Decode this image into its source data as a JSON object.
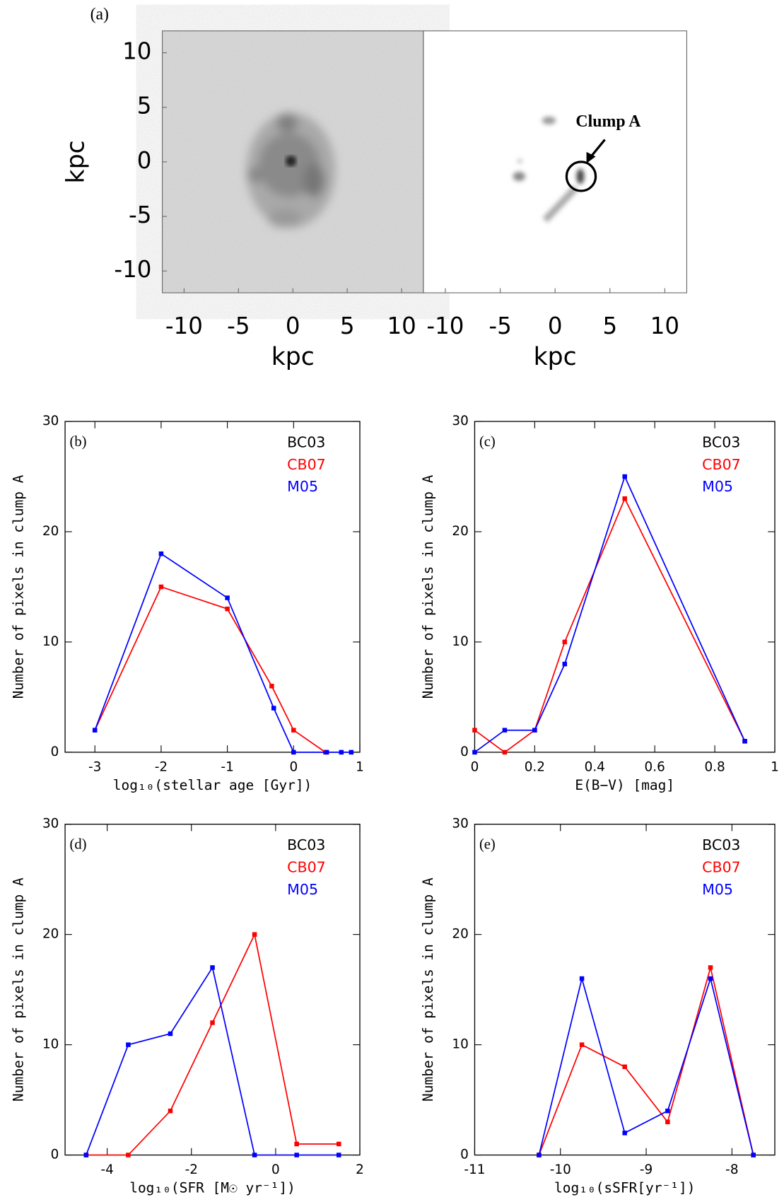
{
  "chart_data": [
    {
      "type": "image",
      "panel": "(a)",
      "xlabel": "kpc",
      "ylabel": "kpc",
      "xlim": [
        -12,
        12
      ],
      "ylim": [
        -12,
        12
      ],
      "xticks": [
        -10,
        -5,
        0,
        5,
        10
      ],
      "yticks": [
        -10,
        -5,
        0,
        5,
        10
      ]
    },
    {
      "type": "image",
      "xlabel": "kpc",
      "annotation": "Clump A",
      "xlim": [
        -12,
        12
      ],
      "ylim": [
        -12,
        12
      ],
      "xticks": [
        -10,
        -5,
        0,
        5,
        10
      ]
    },
    {
      "type": "line",
      "panel": "(b)",
      "xlabel": "log₁₀(stellar age [Gyr])",
      "ylabel": "Number of pixels in clump A",
      "xlim": [
        -3.45,
        1
      ],
      "ylim": [
        0,
        30
      ],
      "xticks": [
        -3,
        -2,
        -1,
        0,
        1
      ],
      "yticks": [
        0,
        10,
        20,
        30
      ],
      "series": [
        {
          "name": "BC03",
          "color": "#000000",
          "x": [],
          "values": []
        },
        {
          "name": "CB07",
          "color": "#ff0000",
          "x": [
            -3,
            -2,
            -1,
            -0.33,
            0,
            0.48
          ],
          "values": [
            2,
            15,
            13,
            6,
            2,
            0
          ]
        },
        {
          "name": "M05",
          "color": "#0000ff",
          "x": [
            -3,
            -2,
            -1,
            -0.3,
            0,
            0.5,
            0.72,
            0.87
          ],
          "values": [
            2,
            18,
            14,
            4,
            0,
            0,
            0,
            0
          ]
        }
      ]
    },
    {
      "type": "line",
      "panel": "(c)",
      "xlabel": "E(B−V) [mag]",
      "ylabel": "Number of pixels in clump A",
      "xlim": [
        0,
        1
      ],
      "ylim": [
        0,
        30
      ],
      "xticks": [
        0,
        0.2,
        0.4,
        0.6,
        0.8,
        1
      ],
      "yticks": [
        0,
        10,
        20,
        30
      ],
      "series": [
        {
          "name": "BC03",
          "color": "#000000",
          "x": [],
          "values": []
        },
        {
          "name": "CB07",
          "color": "#ff0000",
          "x": [
            0,
            0.1,
            0.2,
            0.3,
            0.5,
            0.9
          ],
          "values": [
            2,
            0,
            2,
            10,
            23,
            1
          ]
        },
        {
          "name": "M05",
          "color": "#0000ff",
          "x": [
            0,
            0.1,
            0.2,
            0.3,
            0.5,
            0.9
          ],
          "values": [
            0,
            2,
            2,
            8,
            25,
            1
          ]
        }
      ]
    },
    {
      "type": "line",
      "panel": "(d)",
      "xlabel": "log₁₀(SFR [M☉ yr⁻¹])",
      "ylabel": "Number of pixels in clump A",
      "xlim": [
        -5,
        2
      ],
      "ylim": [
        0,
        30
      ],
      "xticks": [
        -4,
        -2,
        0,
        2
      ],
      "yticks": [
        0,
        10,
        20,
        30
      ],
      "series": [
        {
          "name": "BC03",
          "color": "#000000",
          "x": [],
          "values": []
        },
        {
          "name": "CB07",
          "color": "#ff0000",
          "x": [
            -4.5,
            -3.5,
            -2.5,
            -1.5,
            -0.5,
            0.5,
            1.5
          ],
          "values": [
            0,
            0,
            4,
            12,
            20,
            1,
            1
          ]
        },
        {
          "name": "M05",
          "color": "#0000ff",
          "x": [
            -4.5,
            -3.5,
            -2.5,
            -1.5,
            -0.5,
            0.5,
            1.5
          ],
          "values": [
            0,
            10,
            11,
            17,
            0,
            0,
            0
          ]
        }
      ]
    },
    {
      "type": "line",
      "panel": "(e)",
      "xlabel": "log₁₀(sSFR[yr⁻¹])",
      "ylabel": "Number of pixels in clump A",
      "xlim": [
        -11,
        -7.5
      ],
      "ylim": [
        0,
        30
      ],
      "xticks": [
        -11,
        -10,
        -9,
        -8
      ],
      "yticks": [
        0,
        10,
        20,
        30
      ],
      "series": [
        {
          "name": "BC03",
          "color": "#000000",
          "x": [],
          "values": []
        },
        {
          "name": "CB07",
          "color": "#ff0000",
          "x": [
            -10.25,
            -9.75,
            -9.25,
            -8.75,
            -8.25,
            -7.75
          ],
          "values": [
            0,
            10,
            8,
            3,
            17,
            0
          ]
        },
        {
          "name": "M05",
          "color": "#0000ff",
          "x": [
            -10.25,
            -9.75,
            -9.25,
            -8.75,
            -8.25,
            -7.75
          ],
          "values": [
            0,
            16,
            2,
            4,
            16,
            0
          ]
        }
      ]
    }
  ]
}
